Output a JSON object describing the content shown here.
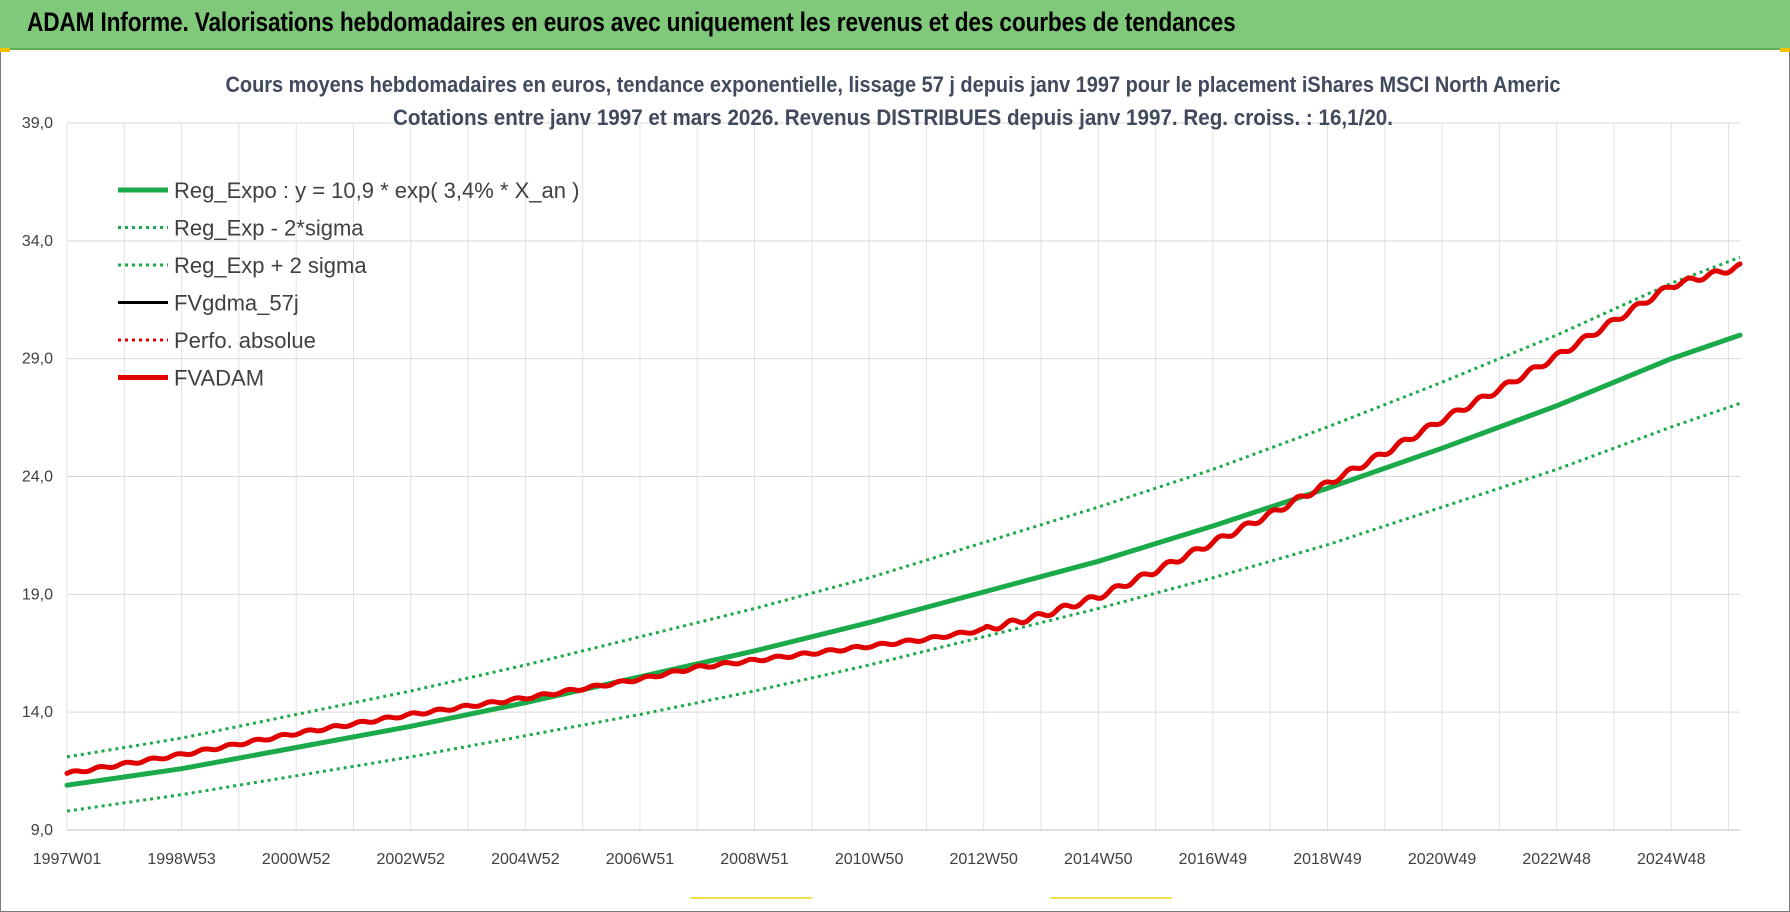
{
  "banner": {
    "title": "ADAM Informe. Valorisations hebdomadaires en euros avec uniquement les revenus et des courbes de tendances",
    "background": "#80c97a"
  },
  "chart_data": {
    "type": "line",
    "title_line1": "Cours moyens hebdomadaires en euros, tendance exponentielle, lissage 57 j depuis janv 1997 pour le placement iShares MSCI North Americ",
    "title_line2": "Cotations entre janv 1997 et mars 2026. Revenus DISTRIBUES depuis janv 1997. Reg. croiss. : 16,1/20.",
    "ylim": [
      9,
      39
    ],
    "yticks": [
      "9,0",
      "14,0",
      "19,0",
      "24,0",
      "29,0",
      "34,0",
      "39,0"
    ],
    "ytick_values": [
      9,
      14,
      19,
      24,
      29,
      34,
      39
    ],
    "xlim": [
      1997.0,
      2026.2
    ],
    "xticks": [
      "1997W01",
      "1998W53",
      "2000W52",
      "2002W52",
      "2004W52",
      "2006W51",
      "2008W51",
      "2010W50",
      "2012W50",
      "2014W50",
      "2016W49",
      "2018W49",
      "2020W49",
      "2022W48",
      "2024W48"
    ],
    "xtick_values": [
      1997.0,
      1999.0,
      2001.0,
      2003.0,
      2005.0,
      2007.0,
      2009.0,
      2011.0,
      2013.0,
      2015.0,
      2017.0,
      2019.0,
      2021.0,
      2023.0,
      2025.0
    ],
    "grid": true,
    "legend_position": "top-left",
    "series": [
      {
        "name": "Reg_Expo : y = 10,9 * exp( 3,4% *  X_an )",
        "color": "#1aaa4a",
        "style": "solid-thick",
        "x": [
          1997.0,
          1999.0,
          2001.0,
          2003.0,
          2005.0,
          2007.0,
          2009.0,
          2011.0,
          2013.0,
          2015.0,
          2017.0,
          2019.0,
          2021.0,
          2023.0,
          2025.0,
          2026.2
        ],
        "y": [
          10.9,
          11.6,
          12.5,
          13.4,
          14.4,
          15.5,
          16.6,
          17.8,
          19.1,
          20.4,
          21.9,
          23.5,
          25.2,
          27.0,
          29.0,
          30.0
        ]
      },
      {
        "name": "Reg_Exp - 2*sigma",
        "color": "#1aaa4a",
        "style": "dotted",
        "x": [
          1997.0,
          1999.0,
          2001.0,
          2003.0,
          2005.0,
          2007.0,
          2009.0,
          2011.0,
          2013.0,
          2015.0,
          2017.0,
          2019.0,
          2021.0,
          2023.0,
          2025.0,
          2026.2
        ],
        "y": [
          9.8,
          10.5,
          11.3,
          12.1,
          13.0,
          13.9,
          14.9,
          16.0,
          17.2,
          18.4,
          19.7,
          21.1,
          22.7,
          24.3,
          26.1,
          27.1
        ]
      },
      {
        "name": "Reg_Exp + 2 sigma",
        "color": "#1aaa4a",
        "style": "dotted",
        "x": [
          1997.0,
          1999.0,
          2001.0,
          2003.0,
          2005.0,
          2007.0,
          2009.0,
          2011.0,
          2013.0,
          2015.0,
          2017.0,
          2019.0,
          2021.0,
          2023.0,
          2025.0,
          2026.2
        ],
        "y": [
          12.1,
          12.9,
          13.9,
          14.9,
          16.0,
          17.2,
          18.4,
          19.7,
          21.2,
          22.7,
          24.3,
          26.1,
          28.0,
          30.0,
          32.2,
          33.3
        ]
      },
      {
        "name": "FVgdma_57j",
        "color": "#000000",
        "style": "solid",
        "x": [],
        "y": []
      },
      {
        "name": "Perfo. absolue",
        "color": "#e00000",
        "style": "dotted",
        "x": [],
        "y": []
      },
      {
        "name": "FVADAM",
        "color": "#e00000",
        "style": "solid-thick",
        "x": [
          1997.0,
          1999.0,
          2001.0,
          2003.0,
          2005.0,
          2006.0,
          2007.0,
          2008.0,
          2009.0,
          2010.0,
          2011.0,
          2012.0,
          2013.0,
          2014.0,
          2015.0,
          2016.0,
          2017.0,
          2018.0,
          2019.0,
          2020.0,
          2021.0,
          2022.0,
          2023.0,
          2024.0,
          2025.0,
          2026.2
        ],
        "y": [
          11.4,
          12.2,
          13.1,
          13.9,
          14.6,
          15.0,
          15.4,
          15.9,
          16.2,
          16.5,
          16.8,
          17.1,
          17.5,
          18.1,
          18.9,
          20.0,
          21.2,
          22.4,
          23.7,
          25.0,
          26.4,
          27.7,
          29.1,
          30.6,
          32.1,
          32.9
        ]
      }
    ]
  }
}
